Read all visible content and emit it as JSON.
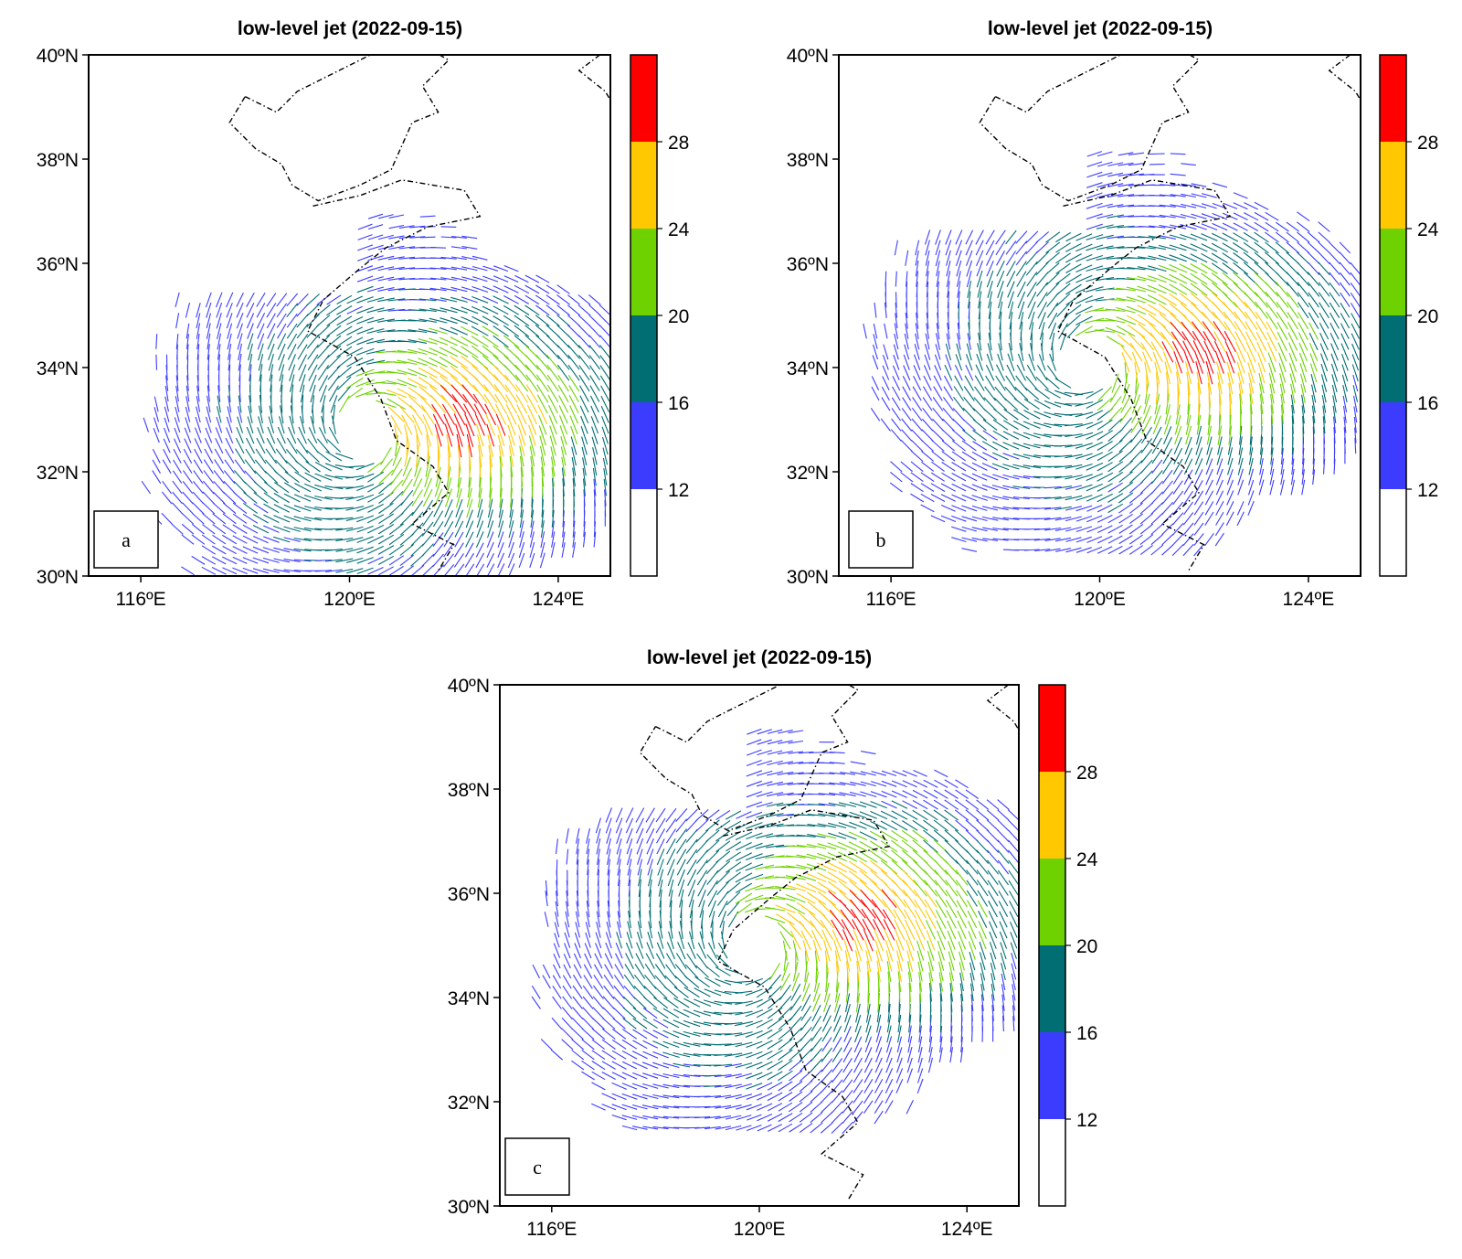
{
  "figure": {
    "layout": "three-panel wind map figure"
  },
  "chart_data": [
    {
      "type": "map",
      "label": "a",
      "title": "low-level jet (2022-09-15)",
      "lon_range": [
        115,
        125
      ],
      "lat_range": [
        30,
        40
      ],
      "lon_ticks": [
        "116ºE",
        "120ºE",
        "124ºE"
      ],
      "lat_ticks": [
        "40ºN",
        "38ºN",
        "36ºN",
        "34ºN",
        "32ºN",
        "30ºN"
      ],
      "colorbar": {
        "levels": [
          "12",
          "16",
          "20",
          "24",
          "28"
        ]
      },
      "vortex_center": [
        120.3,
        32.8
      ],
      "jet_max_center": [
        122.2,
        33.0
      ]
    },
    {
      "type": "map",
      "label": "b",
      "title": "low-level jet (2022-09-15)",
      "lon_range": [
        115,
        125
      ],
      "lat_range": [
        30,
        40
      ],
      "lon_ticks": [
        "116ºE",
        "120ºE",
        "124ºE"
      ],
      "lat_ticks": [
        "40ºN",
        "38ºN",
        "36ºN",
        "34ºN",
        "32ºN",
        "30ºN"
      ],
      "colorbar": {
        "levels": [
          "12",
          "16",
          "20",
          "24",
          "28"
        ]
      },
      "vortex_center": [
        119.8,
        34.1
      ],
      "jet_max_center": [
        121.9,
        34.3
      ]
    },
    {
      "type": "map",
      "label": "c",
      "title": "low-level jet (2022-09-15)",
      "lon_range": [
        115,
        125
      ],
      "lat_range": [
        30,
        40
      ],
      "lon_ticks": [
        "116ºE",
        "120ºE",
        "124ºE"
      ],
      "lat_ticks": [
        "40ºN",
        "38ºN",
        "36ºN",
        "34ºN",
        "32ºN",
        "30ºN"
      ],
      "colorbar": {
        "levels": [
          "12",
          "16",
          "20",
          "24",
          "28"
        ]
      },
      "vortex_center": [
        119.9,
        35.0
      ],
      "jet_max_center": [
        122.0,
        35.5
      ]
    }
  ],
  "colors": {
    "level_0": "#ffffff",
    "level_1": "#3c3cff",
    "level_2": "#006e73",
    "level_3": "#6ed200",
    "level_4": "#ffc800",
    "level_5": "#ff0000",
    "coast": "#000000"
  }
}
